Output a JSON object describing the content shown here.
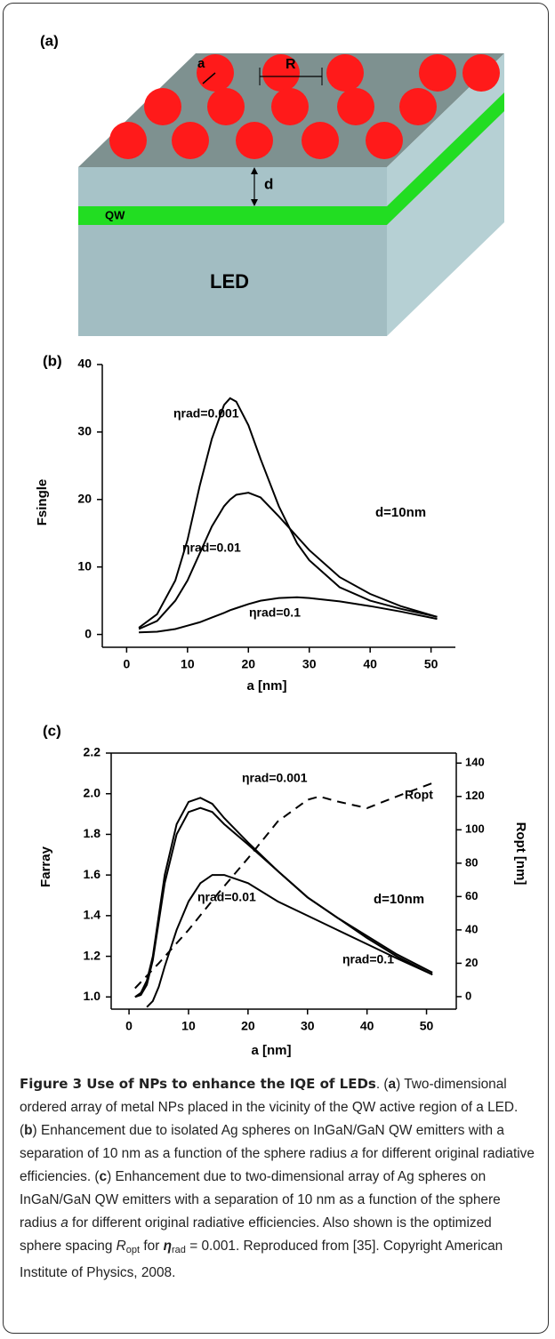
{
  "diagram": {
    "panel": "(a)",
    "radius": "a",
    "spacing": "R",
    "distance": "d",
    "well": "QW",
    "device": "LED"
  },
  "chart_data": [
    {
      "type": "line",
      "panel": "(b)",
      "xlabel": "a  [nm]",
      "ylabel": "Fsingle",
      "annotation": "d=10nm",
      "xlim": [
        -4,
        54
      ],
      "xticks": [
        0,
        10,
        20,
        30,
        40,
        50
      ],
      "ylim": [
        -1.9,
        40
      ],
      "yticks": [
        0,
        10,
        20,
        30,
        40
      ],
      "series": [
        {
          "name": "ηrad=0.001",
          "color": "#000000",
          "x": [
            2,
            5,
            8,
            10,
            12,
            14,
            16,
            17,
            18,
            20,
            22,
            25,
            28,
            30,
            35,
            40,
            45,
            51
          ],
          "values": [
            1,
            3,
            8,
            14,
            22,
            29,
            34,
            35,
            34.5,
            31,
            26,
            19,
            13.5,
            11,
            7,
            5,
            3.8,
            2.6
          ]
        },
        {
          "name": "ηrad=0.01",
          "color": "#000000",
          "x": [
            2,
            5,
            8,
            10,
            12,
            14,
            16,
            17,
            18,
            20,
            22,
            25,
            28,
            30,
            35,
            40,
            45,
            51
          ],
          "values": [
            0.8,
            2,
            5,
            8,
            12,
            16,
            19,
            20,
            20.7,
            21,
            20.3,
            17.5,
            14.5,
            12.5,
            8.5,
            6,
            4.2,
            2.6
          ]
        },
        {
          "name": "ηrad=0.1",
          "color": "#000000",
          "x": [
            2,
            5,
            8,
            10,
            12,
            14,
            16,
            17,
            18,
            20,
            22,
            25,
            28,
            30,
            35,
            40,
            45,
            51
          ],
          "values": [
            0.3,
            0.4,
            0.8,
            1.3,
            1.8,
            2.5,
            3.2,
            3.6,
            3.9,
            4.5,
            5,
            5.4,
            5.5,
            5.4,
            4.9,
            4.2,
            3.4,
            2.3
          ]
        }
      ]
    },
    {
      "type": "line",
      "panel": "(c)",
      "xlabel": "a  [nm]",
      "ylabel": "Farray",
      "y2label": "Ropt [nm]",
      "annotation": "d=10nm",
      "xlim": [
        -3,
        55
      ],
      "xticks": [
        0,
        10,
        20,
        30,
        40,
        50
      ],
      "ylim": [
        0.94,
        2.2
      ],
      "yticks": [
        {
          "value": 1,
          "label": "1.0"
        },
        1.2,
        1.4,
        1.6,
        1.8,
        {
          "value": 2,
          "label": "2.0"
        },
        2.2
      ],
      "y2lim": [
        -7.5,
        146
      ],
      "y2ticks": [
        0,
        20,
        40,
        60,
        80,
        100,
        120,
        140
      ],
      "series": [
        {
          "name": "ηrad=0.001",
          "color": "#000000",
          "x": [
            1,
            2,
            3,
            4,
            5,
            6,
            8,
            10,
            12,
            14,
            16,
            20,
            25,
            30,
            35,
            40,
            45,
            51
          ],
          "values": [
            1.0,
            1.02,
            1.08,
            1.2,
            1.4,
            1.6,
            1.85,
            1.96,
            1.98,
            1.95,
            1.88,
            1.76,
            1.62,
            1.49,
            1.39,
            1.3,
            1.21,
            1.12
          ]
        },
        {
          "name": "ηrad=0.01",
          "color": "#000000",
          "x": [
            1,
            2,
            3,
            4,
            5,
            6,
            8,
            10,
            12,
            14,
            16,
            20,
            25,
            30,
            35,
            40,
            45,
            51
          ],
          "values": [
            1.0,
            1.01,
            1.06,
            1.18,
            1.37,
            1.56,
            1.8,
            1.91,
            1.93,
            1.91,
            1.85,
            1.75,
            1.62,
            1.49,
            1.39,
            1.29,
            1.2,
            1.11
          ]
        },
        {
          "name": "ηrad=0.1",
          "color": "#000000",
          "x": [
            3,
            4,
            5,
            6,
            8,
            10,
            12,
            14,
            16,
            20,
            25,
            30,
            35,
            40,
            45,
            51
          ],
          "values": [
            0.95,
            0.98,
            1.05,
            1.15,
            1.33,
            1.47,
            1.56,
            1.6,
            1.6,
            1.56,
            1.47,
            1.4,
            1.33,
            1.26,
            1.19,
            1.11
          ]
        },
        {
          "name": "Ropt",
          "color": "#000000",
          "axis": "y2",
          "style": "dashed",
          "x": [
            1,
            5,
            10,
            15,
            20,
            25,
            30,
            32,
            35,
            40,
            45,
            51
          ],
          "values": [
            5,
            20,
            40,
            62,
            83,
            105,
            118,
            120,
            117,
            113,
            120,
            128
          ]
        }
      ]
    }
  ],
  "caption": {
    "title": "Figure 3 Use of NPs to enhance the IQE of LEDs",
    "body": [
      ". (",
      "a",
      ") Two-dimensional ordered array of metal NPs placed in the vicinity of the QW active region of a LED. (",
      "b",
      ") Enhancement due to isolated Ag spheres on InGaN/GaN QW emitters with a separation of 10 nm as a function of the sphere radius ",
      "a",
      " for different original radiative efficiencies. (",
      "c",
      ") Enhancement due to two-dimensional array of Ag spheres on InGaN/GaN QW emitters with a separation of 10 nm as a function of the sphere radius ",
      "a",
      " for different original radiative efficiencies. Also shown is the optimized sphere spacing ",
      "R",
      "opt",
      " for ",
      "η",
      "rad",
      " = 0.001. Reproduced from [35]. Copyright American Institute of Physics, 2008."
    ]
  }
}
